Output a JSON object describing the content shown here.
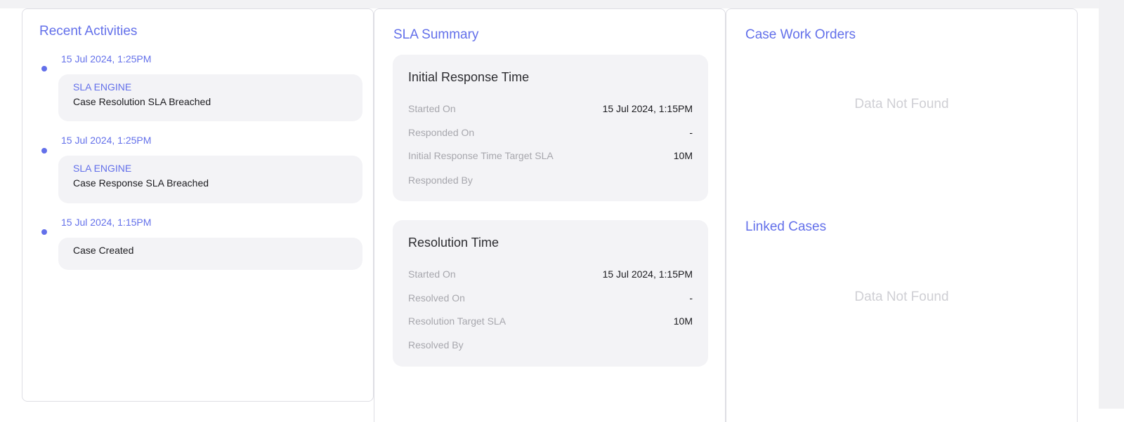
{
  "recent_activities": {
    "title": "Recent Activities",
    "items": [
      {
        "time": "15 Jul 2024, 1:25PM",
        "source": "SLA ENGINE",
        "message": "Case Resolution SLA Breached"
      },
      {
        "time": "15 Jul 2024, 1:25PM",
        "source": "SLA ENGINE",
        "message": "Case Response SLA Breached"
      },
      {
        "time": "15 Jul 2024, 1:15PM",
        "source": "",
        "message": "Case Created"
      }
    ]
  },
  "sla_summary": {
    "title": "SLA Summary",
    "cards": [
      {
        "heading": "Initial Response Time",
        "rows": [
          {
            "label": "Started On",
            "value": "15 Jul 2024, 1:15PM"
          },
          {
            "label": "Responded On",
            "value": "-"
          },
          {
            "label": "Initial Response Time Target SLA",
            "value": "10M"
          },
          {
            "label": "Responded By",
            "value": ""
          }
        ]
      },
      {
        "heading": "Resolution Time",
        "rows": [
          {
            "label": "Started On",
            "value": "15 Jul 2024, 1:15PM"
          },
          {
            "label": "Resolved On",
            "value": "-"
          },
          {
            "label": "Resolution Target SLA",
            "value": "10M"
          },
          {
            "label": "Resolved By",
            "value": ""
          }
        ]
      }
    ]
  },
  "case_work_orders": {
    "title": "Case Work Orders",
    "empty_text": "Data Not Found"
  },
  "linked_cases": {
    "title": "Linked Cases",
    "empty_text": "Data Not Found"
  },
  "colors": {
    "accent": "#6370ea",
    "card_bg": "#f3f3f6",
    "muted_text": "#a7a7ad",
    "empty_text": "#cfcfd4"
  }
}
